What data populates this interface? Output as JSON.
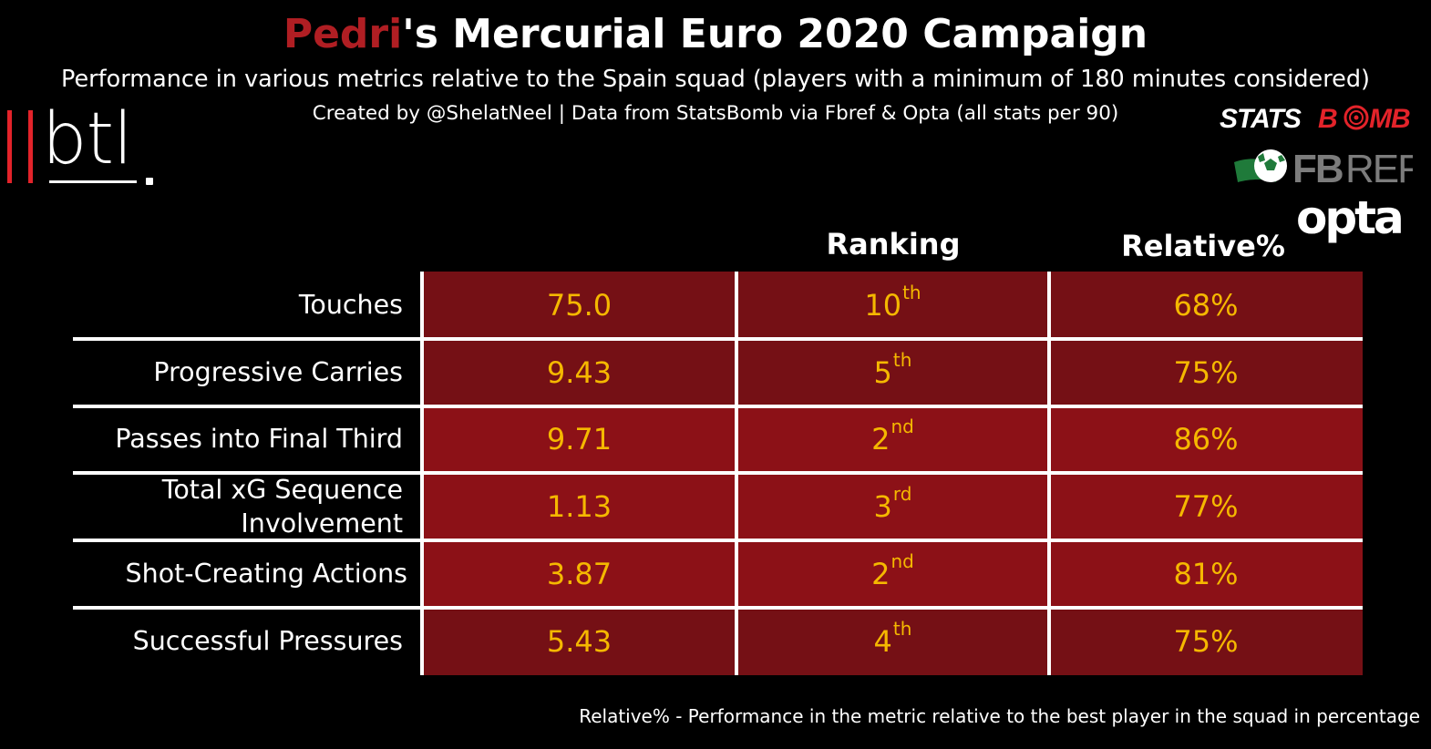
{
  "title": {
    "player": "Pedri",
    "rest": "'s Mercurial Euro 2020 Campaign"
  },
  "subtitle": "Performance in various metrics relative to the Spain squad (players with a minimum of 180 minutes considered)",
  "credit": "Created by @ShelatNeel | Data from StatsBomb via Fbref & Opta (all stats per 90)",
  "note": "Relative% - Performance in the metric relative to the best player in the squad in percentage",
  "logos": {
    "btl": "btl",
    "statsbomb": "STATSBOMB",
    "fbref": "FBREF",
    "opta": "opta"
  },
  "colors": {
    "title_highlight": "#b01e23",
    "value_text": "#f5b800",
    "cell_light": "#8c1117",
    "cell_dark": "#751015"
  },
  "chart_data": {
    "type": "table",
    "columns": [
      "",
      "Ranking",
      "Relative%"
    ],
    "rows": [
      {
        "metric": "Touches",
        "value": "75.0",
        "rank_num": "10",
        "rank_suffix": "th",
        "relative": "68%"
      },
      {
        "metric": "Progressive Carries",
        "value": "9.43",
        "rank_num": "5",
        "rank_suffix": "th",
        "relative": "75%"
      },
      {
        "metric": "Passes into Final Third",
        "value": "9.71",
        "rank_num": "2",
        "rank_suffix": "nd",
        "relative": "86%"
      },
      {
        "metric": "Total xG Sequence Involvement",
        "value": "1.13",
        "rank_num": "3",
        "rank_suffix": "rd",
        "relative": "77%"
      },
      {
        "metric": "Shot-Creating Actions",
        "value": "3.87",
        "rank_num": "2",
        "rank_suffix": "nd",
        "relative": "81%"
      },
      {
        "metric": "Successful Pressures",
        "value": "5.43",
        "rank_num": "4",
        "rank_suffix": "th",
        "relative": "75%"
      }
    ]
  }
}
